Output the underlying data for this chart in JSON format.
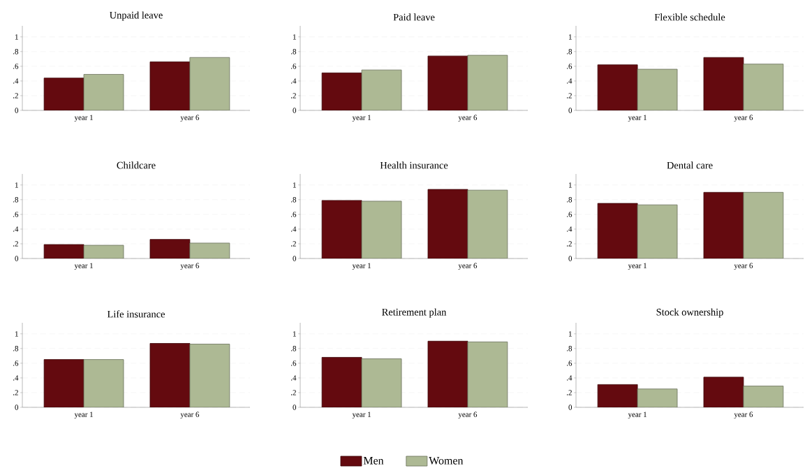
{
  "chart_data": [
    {
      "type": "bar",
      "title": "Unpaid leave",
      "categories": [
        "year 1",
        "year 6"
      ],
      "series": [
        {
          "color": "#640a0f",
          "values": [
            0.44,
            0.66
          ]
        },
        {
          "color": "#adb994",
          "values": [
            0.49,
            0.72
          ]
        }
      ],
      "ylim": [
        0,
        1.15
      ],
      "yticks": [
        0,
        {
          "value": 0.2,
          "label": ".2"
        },
        {
          "value": 0.4,
          "label": ".4"
        },
        {
          "value": 0.6,
          "label": ".6"
        },
        {
          "value": 0.8,
          "label": ".8"
        },
        1
      ],
      "grid": "y"
    },
    {
      "type": "bar",
      "title": "Paid leave",
      "categories": [
        "year 1",
        "year 6"
      ],
      "series": [
        {
          "color": "#640a0f",
          "values": [
            0.51,
            0.74
          ]
        },
        {
          "color": "#adb994",
          "values": [
            0.55,
            0.75
          ]
        }
      ],
      "ylim": [
        0,
        1.15
      ],
      "yticks": [
        0,
        {
          "value": 0.2,
          "label": ".2"
        },
        {
          "value": 0.4,
          "label": ".4"
        },
        {
          "value": 0.6,
          "label": ".6"
        },
        {
          "value": 0.8,
          "label": ".8"
        },
        1
      ],
      "grid": "y"
    },
    {
      "type": "bar",
      "title": "Flexible schedule",
      "categories": [
        "year 1",
        "year 6"
      ],
      "series": [
        {
          "color": "#640a0f",
          "values": [
            0.62,
            0.72
          ]
        },
        {
          "color": "#adb994",
          "values": [
            0.56,
            0.63
          ]
        }
      ],
      "ylim": [
        0,
        1.15
      ],
      "yticks": [
        0,
        {
          "value": 0.2,
          "label": ".2"
        },
        {
          "value": 0.4,
          "label": ".4"
        },
        {
          "value": 0.6,
          "label": ".6"
        },
        {
          "value": 0.8,
          "label": ".8"
        },
        1
      ],
      "grid": "y"
    },
    {
      "type": "bar",
      "title": "Childcare",
      "categories": [
        "year 1",
        "year 6"
      ],
      "series": [
        {
          "color": "#640a0f",
          "values": [
            0.19,
            0.26
          ]
        },
        {
          "color": "#adb994",
          "values": [
            0.18,
            0.21
          ]
        }
      ],
      "ylim": [
        0,
        1.15
      ],
      "yticks": [
        0,
        {
          "value": 0.2,
          "label": ".2"
        },
        {
          "value": 0.4,
          "label": ".4"
        },
        {
          "value": 0.6,
          "label": ".6"
        },
        {
          "value": 0.8,
          "label": ".8"
        },
        1
      ],
      "grid": "y"
    },
    {
      "type": "bar",
      "title": "Health insurance",
      "categories": [
        "year 1",
        "year 6"
      ],
      "series": [
        {
          "color": "#640a0f",
          "values": [
            0.79,
            0.94
          ]
        },
        {
          "color": "#adb994",
          "values": [
            0.78,
            0.93
          ]
        }
      ],
      "ylim": [
        0,
        1.15
      ],
      "yticks": [
        0,
        {
          "value": 0.2,
          "label": ".2"
        },
        {
          "value": 0.4,
          "label": ".4"
        },
        {
          "value": 0.6,
          "label": ".6"
        },
        {
          "value": 0.8,
          "label": ".8"
        },
        1
      ],
      "grid": "y"
    },
    {
      "type": "bar",
      "title": "Dental care",
      "categories": [
        "year 1",
        "year 6"
      ],
      "series": [
        {
          "color": "#640a0f",
          "values": [
            0.75,
            0.9
          ]
        },
        {
          "color": "#adb994",
          "values": [
            0.73,
            0.9
          ]
        }
      ],
      "ylim": [
        0,
        1.15
      ],
      "yticks": [
        0,
        {
          "value": 0.2,
          "label": ".2"
        },
        {
          "value": 0.4,
          "label": ".4"
        },
        {
          "value": 0.6,
          "label": ".6"
        },
        {
          "value": 0.8,
          "label": ".8"
        },
        1
      ],
      "grid": "y"
    },
    {
      "type": "bar",
      "title": "Life insurance",
      "categories": [
        "year 1",
        "year 6"
      ],
      "series": [
        {
          "color": "#640a0f",
          "values": [
            0.65,
            0.87
          ]
        },
        {
          "color": "#adb994",
          "values": [
            0.65,
            0.86
          ]
        }
      ],
      "ylim": [
        0,
        1.15
      ],
      "yticks": [
        0,
        {
          "value": 0.2,
          "label": ".2"
        },
        {
          "value": 0.4,
          "label": ".4"
        },
        {
          "value": 0.6,
          "label": ".6"
        },
        {
          "value": 0.8,
          "label": ".8"
        },
        1
      ],
      "grid": "y"
    },
    {
      "type": "bar",
      "title": "Retirement plan",
      "categories": [
        "year 1",
        "year 6"
      ],
      "series": [
        {
          "color": "#640a0f",
          "values": [
            0.68,
            0.9
          ]
        },
        {
          "color": "#adb994",
          "values": [
            0.66,
            0.89
          ]
        }
      ],
      "ylim": [
        0,
        1.15
      ],
      "yticks": [
        0,
        {
          "value": 0.2,
          "label": ".2"
        },
        {
          "value": 0.4,
          "label": ".4"
        },
        {
          "value": 0.6,
          "label": ".6"
        },
        {
          "value": 0.8,
          "label": ".8"
        },
        1
      ],
      "grid": "y"
    },
    {
      "type": "bar",
      "title": "Stock ownership",
      "categories": [
        "year 1",
        "year 6"
      ],
      "series": [
        {
          "name": "Men",
          "color": "#640a0f",
          "values": [
            0.31,
            0.41
          ]
        },
        {
          "name": "Women",
          "color": "#adb994",
          "values": [
            0.25,
            0.29
          ]
        }
      ],
      "ylim": [
        0,
        1.15
      ],
      "yticks": [
        0,
        {
          "value": 0.2,
          "label": ".2"
        },
        {
          "value": 0.4,
          "label": ".4"
        },
        {
          "value": 0.6,
          "label": ".6"
        },
        {
          "value": 0.8,
          "label": ".8"
        },
        1
      ],
      "grid": "y",
      "legend": "bottom"
    }
  ]
}
